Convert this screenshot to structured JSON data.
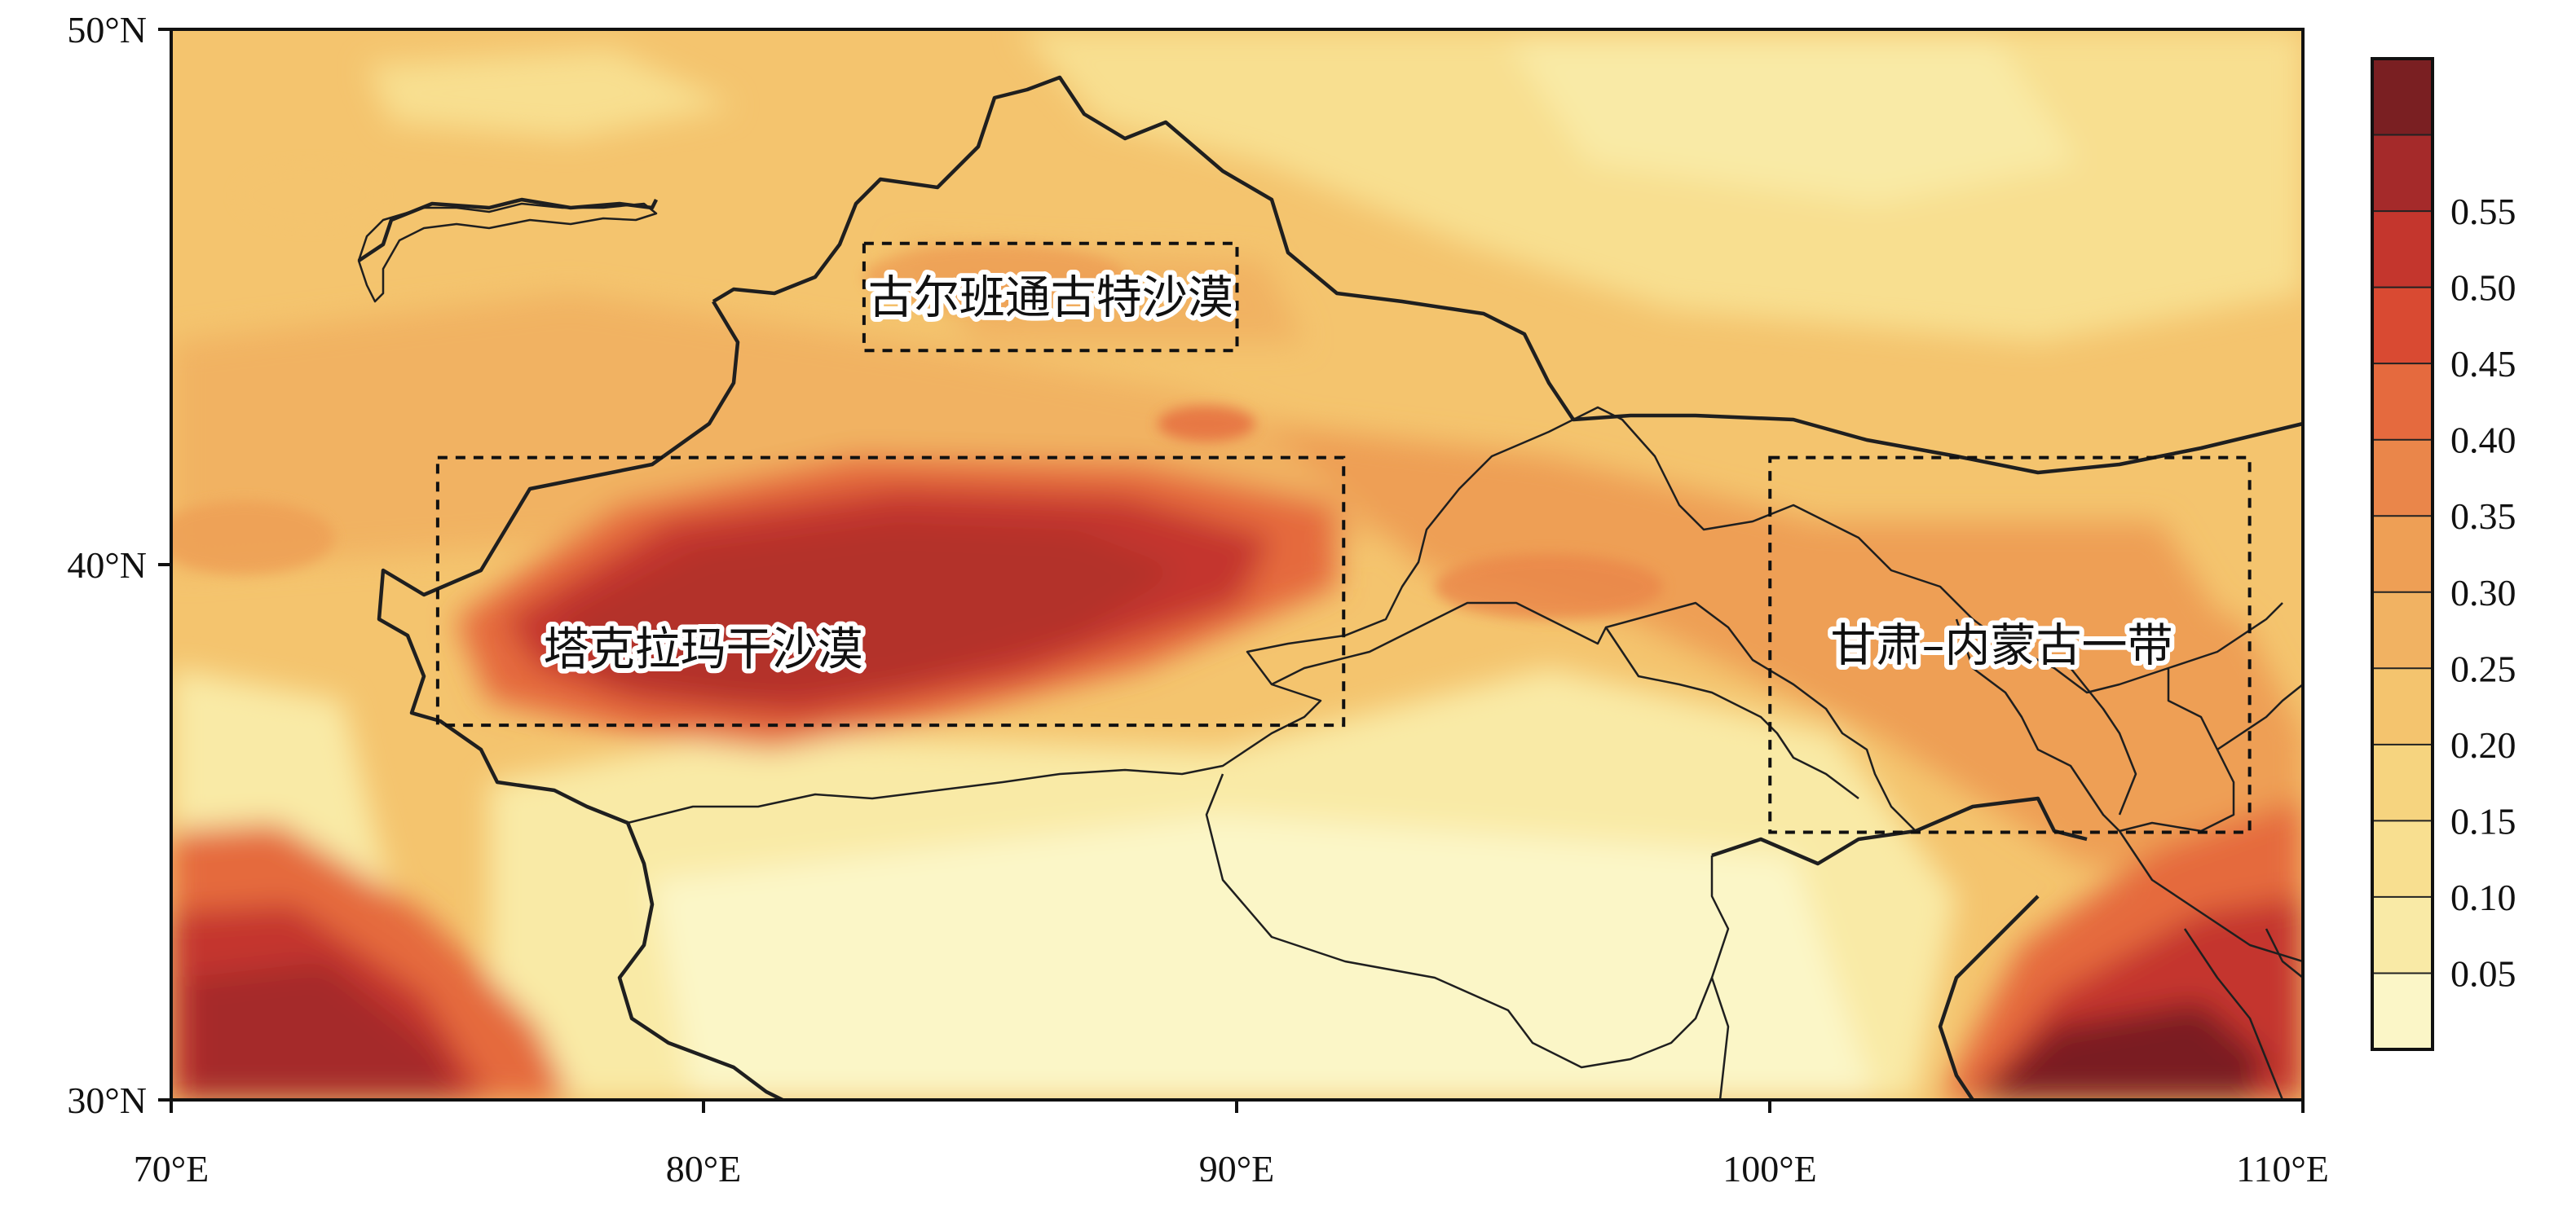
{
  "map": {
    "x_ticks": [
      "70°E",
      "80°E",
      "90°E",
      "100°E",
      "110°E"
    ],
    "y_ticks": [
      "50°N",
      "40°N",
      "30°N"
    ],
    "regions": [
      {
        "name": "古尔班通古特沙漠",
        "lon_range": [
          83,
          90
        ],
        "lat_range": [
          44,
          46
        ]
      },
      {
        "name": "塔克拉玛干沙漠",
        "lon_range": [
          75,
          92
        ],
        "lat_range": [
          37,
          42
        ]
      },
      {
        "name": "甘肃–内蒙古一带",
        "lon_range": [
          100,
          109
        ],
        "lat_range": [
          35,
          42
        ]
      }
    ],
    "colorbar": {
      "labels": [
        "0.55",
        "0.50",
        "0.45",
        "0.40",
        "0.35",
        "0.30",
        "0.25",
        "0.20",
        "0.15",
        "0.10",
        "0.05"
      ],
      "colors": [
        "#fbf6c7",
        "#f9eaa6",
        "#f8df90",
        "#f6d47f",
        "#f4c46e",
        "#f1b262",
        "#ee9f55",
        "#ea864a",
        "#e56a3e",
        "#d94a32",
        "#c4362d",
        "#a52a2a",
        "#7a1f22"
      ]
    }
  }
}
